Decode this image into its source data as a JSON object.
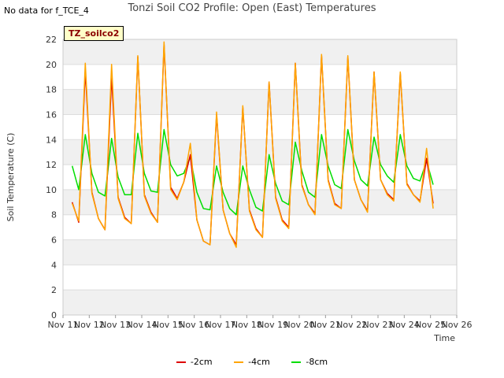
{
  "header": {
    "no_data": "No data for f_TCE_4",
    "title": "Tonzi Soil CO2 Profile: Open (East) Temperatures"
  },
  "tag_label": "TZ_soilco2",
  "chart_data": {
    "type": "line",
    "title": "Tonzi Soil CO2 Profile: Open (East) Temperatures",
    "xlabel": "Time",
    "ylabel": "Soil Temperature (C)",
    "xlim": [
      11,
      26
    ],
    "ylim": [
      0,
      22
    ],
    "x_ticks": [
      "Nov 11",
      "Nov 12",
      "Nov 13",
      "Nov 14",
      "Nov 15",
      "Nov 16",
      "Nov 17",
      "Nov 18",
      "Nov 19",
      "Nov 20",
      "Nov 21",
      "Nov 22",
      "Nov 23",
      "Nov 24",
      "Nov 25",
      "Nov 26"
    ],
    "y_ticks": [
      0,
      2,
      4,
      6,
      8,
      10,
      12,
      14,
      16,
      18,
      20,
      22
    ],
    "grid": "horizontal-bands",
    "legend_position": "bottom",
    "x_start": 11.35,
    "x_step": 0.25,
    "series": [
      {
        "name": "-2cm",
        "color": "#dd0000",
        "values": [
          9.0,
          7.4,
          19.5,
          9.8,
          7.7,
          6.8,
          19.0,
          9.4,
          7.8,
          7.3,
          20.6,
          9.6,
          8.2,
          7.4,
          21.6,
          10.2,
          9.3,
          10.6,
          12.8,
          7.6,
          5.9,
          5.6,
          16.0,
          8.4,
          6.5,
          5.6,
          16.6,
          8.4,
          6.9,
          6.2,
          18.6,
          9.4,
          7.6,
          7.0,
          20.1,
          10.4,
          8.8,
          8.1,
          20.7,
          10.8,
          8.9,
          8.5,
          20.6,
          10.8,
          9.2,
          8.3,
          19.4,
          10.8,
          9.7,
          9.2,
          19.3,
          10.5,
          9.6,
          9.1,
          12.5,
          8.9
        ]
      },
      {
        "name": "-4cm",
        "color": "#ffa500",
        "values": [
          8.9,
          7.5,
          20.1,
          9.7,
          7.7,
          6.8,
          20.0,
          9.3,
          7.7,
          7.3,
          20.7,
          9.5,
          8.1,
          7.4,
          21.8,
          10.0,
          9.2,
          10.6,
          13.7,
          7.6,
          5.9,
          5.6,
          16.2,
          8.4,
          6.5,
          5.4,
          16.7,
          8.3,
          6.8,
          6.2,
          18.6,
          9.3,
          7.5,
          6.9,
          20.1,
          10.3,
          8.8,
          8.0,
          20.8,
          10.7,
          8.8,
          8.5,
          20.7,
          10.8,
          9.2,
          8.2,
          19.4,
          10.8,
          9.6,
          9.1,
          19.4,
          10.4,
          9.6,
          9.0,
          13.3,
          8.5
        ]
      },
      {
        "name": "-8cm",
        "color": "#00dd00",
        "values": [
          11.9,
          10.0,
          14.4,
          11.3,
          9.8,
          9.5,
          14.1,
          11.0,
          9.6,
          9.6,
          14.5,
          11.3,
          9.9,
          9.8,
          14.8,
          12.0,
          11.1,
          11.3,
          12.6,
          9.8,
          8.5,
          8.4,
          11.9,
          9.8,
          8.5,
          8.0,
          11.9,
          10.0,
          8.6,
          8.3,
          12.8,
          10.5,
          9.1,
          8.8,
          13.8,
          11.5,
          9.8,
          9.4,
          14.4,
          11.9,
          10.4,
          10.1,
          14.8,
          12.3,
          10.8,
          10.3,
          14.2,
          12.0,
          11.1,
          10.6,
          14.4,
          11.9,
          10.9,
          10.7,
          12.3,
          10.4
        ]
      }
    ]
  }
}
